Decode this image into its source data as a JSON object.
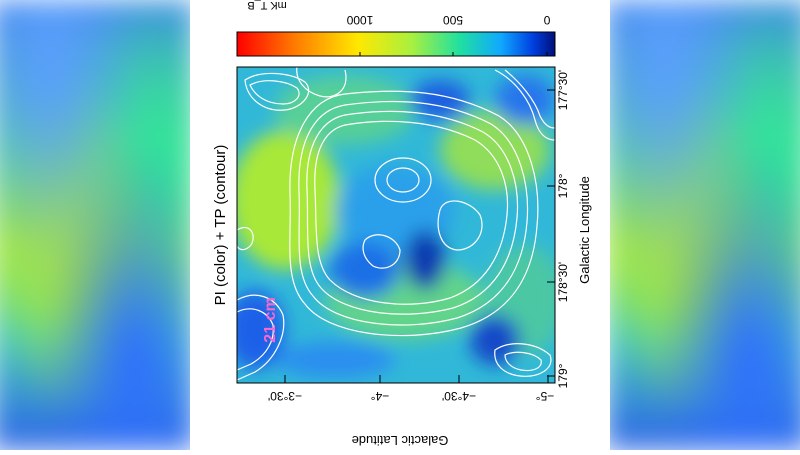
{
  "figure": {
    "title": "PI (color) + TP (contour)",
    "colorbar": {
      "unit": "mK T_B",
      "ticks": [
        "1000",
        "500",
        "0"
      ],
      "colors": [
        "#ff0000",
        "#ff8800",
        "#ffff00",
        "#a0ff40",
        "#00e0a0",
        "#00a0ff",
        "#0040ff",
        "#000080"
      ]
    },
    "xaxis": {
      "label": "Galactic Longitude",
      "ticks": [
        "179°",
        "178°30'",
        "178°",
        "177°30'"
      ]
    },
    "yaxis": {
      "label": "Galactic Latitude",
      "ticks": [
        "−3°30'",
        "−4°",
        "−4°30'",
        "−5°"
      ]
    },
    "annotation": "21 cm"
  }
}
